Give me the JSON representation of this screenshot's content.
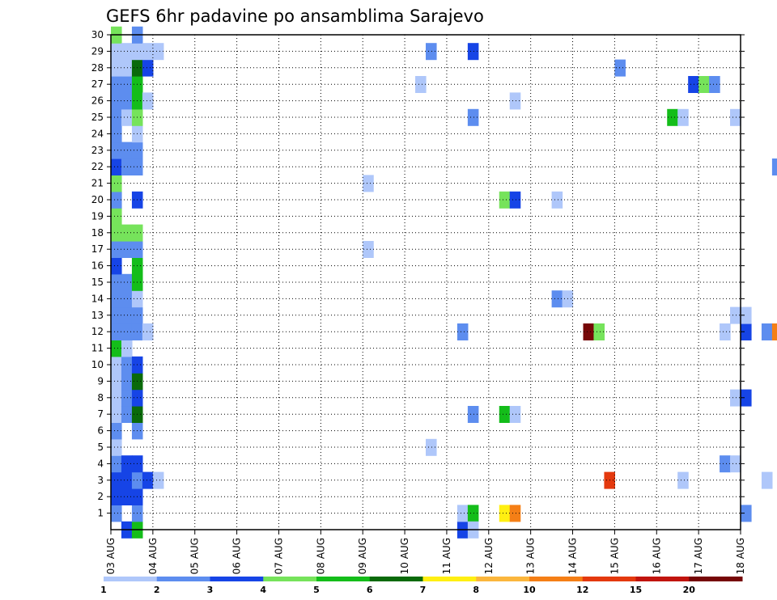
{
  "chart_data": {
    "type": "heatmap",
    "title": "GEFS 6hr padavine po ansamblima Sarajevo",
    "xlabel": "",
    "ylabel": "",
    "x_tick_labels": [
      "03 AUG",
      "04 AUG",
      "05 AUG",
      "06 AUG",
      "07 AUG",
      "08 AUG",
      "09 AUG",
      "10 AUG",
      "11 AUG",
      "12 AUG",
      "13 AUG",
      "14 AUG",
      "15 AUG",
      "16 AUG",
      "17 AUG",
      "18 AUG"
    ],
    "y_tick_labels": [
      "1",
      "2",
      "3",
      "4",
      "5",
      "6",
      "7",
      "8",
      "9",
      "10",
      "11",
      "12",
      "13",
      "14",
      "15",
      "16",
      "17",
      "18",
      "19",
      "20",
      "21",
      "22",
      "23",
      "24",
      "25",
      "26",
      "27",
      "28",
      "29",
      "30"
    ],
    "xlim_days": [
      0,
      15
    ],
    "ylim_members": [
      0,
      30
    ],
    "grid": true,
    "legend_placement": "bottom",
    "colorbar": {
      "labels": [
        "1",
        "2",
        "3",
        "4",
        "5",
        "6",
        "7",
        "8",
        "10",
        "12",
        "15",
        "20"
      ],
      "colors": [
        "#afc7fa",
        "#5d8def",
        "#1644e6",
        "#76e35b",
        "#14bd1a",
        "#0a6a0a",
        "#ffef12",
        "#fbb63d",
        "#f57f16",
        "#e4390e",
        "#c1140e",
        "#760707"
      ]
    },
    "cells": [
      [
        0,
        1,
        1
      ],
      [
        0,
        2,
        2
      ],
      [
        0,
        3,
        2
      ],
      [
        0,
        4,
        1
      ],
      [
        0,
        5,
        0
      ],
      [
        0,
        6,
        1
      ],
      [
        0,
        7,
        0
      ],
      [
        0,
        8,
        0
      ],
      [
        0,
        9,
        0
      ],
      [
        0,
        10,
        0
      ],
      [
        0,
        11,
        4
      ],
      [
        0,
        12,
        1
      ],
      [
        0,
        13,
        1
      ],
      [
        0,
        14,
        1
      ],
      [
        0,
        15,
        1
      ],
      [
        0,
        16,
        2
      ],
      [
        0,
        17,
        1
      ],
      [
        0,
        18,
        3
      ],
      [
        0,
        19,
        3
      ],
      [
        0,
        20,
        1
      ],
      [
        0,
        21,
        3
      ],
      [
        0,
        22,
        2
      ],
      [
        0,
        23,
        1
      ],
      [
        0,
        24,
        1
      ],
      [
        0,
        25,
        1
      ],
      [
        0,
        26,
        1
      ],
      [
        0,
        27,
        1
      ],
      [
        0,
        28,
        0
      ],
      [
        0,
        29,
        0
      ],
      [
        0,
        30,
        3
      ],
      [
        1,
        0,
        2
      ],
      [
        1,
        2,
        2
      ],
      [
        1,
        3,
        2
      ],
      [
        1,
        4,
        2
      ],
      [
        1,
        7,
        1
      ],
      [
        1,
        8,
        1
      ],
      [
        1,
        9,
        1
      ],
      [
        1,
        10,
        1
      ],
      [
        1,
        11,
        0
      ],
      [
        1,
        12,
        1
      ],
      [
        1,
        13,
        1
      ],
      [
        1,
        14,
        1
      ],
      [
        1,
        15,
        1
      ],
      [
        1,
        17,
        1
      ],
      [
        1,
        18,
        3
      ],
      [
        1,
        22,
        1
      ],
      [
        1,
        23,
        1
      ],
      [
        1,
        25,
        0
      ],
      [
        1,
        26,
        1
      ],
      [
        1,
        27,
        1
      ],
      [
        1,
        28,
        0
      ],
      [
        1,
        29,
        0
      ],
      [
        2,
        0,
        4
      ],
      [
        2,
        1,
        1
      ],
      [
        2,
        2,
        2
      ],
      [
        2,
        3,
        1
      ],
      [
        2,
        4,
        2
      ],
      [
        2,
        6,
        1
      ],
      [
        2,
        7,
        5
      ],
      [
        2,
        8,
        2
      ],
      [
        2,
        9,
        5
      ],
      [
        2,
        10,
        2
      ],
      [
        2,
        12,
        1
      ],
      [
        2,
        13,
        1
      ],
      [
        2,
        14,
        0
      ],
      [
        2,
        15,
        4
      ],
      [
        2,
        16,
        4
      ],
      [
        2,
        17,
        1
      ],
      [
        2,
        18,
        3
      ],
      [
        2,
        20,
        2
      ],
      [
        2,
        22,
        1
      ],
      [
        2,
        23,
        1
      ],
      [
        2,
        24,
        0
      ],
      [
        2,
        25,
        3
      ],
      [
        2,
        26,
        4
      ],
      [
        2,
        27,
        4
      ],
      [
        2,
        28,
        5
      ],
      [
        2,
        29,
        0
      ],
      [
        2,
        30,
        1
      ],
      [
        3,
        3,
        2
      ],
      [
        3,
        12,
        0
      ],
      [
        3,
        26,
        0
      ],
      [
        3,
        28,
        2
      ],
      [
        3,
        29,
        0
      ],
      [
        4,
        3,
        0
      ],
      [
        4,
        29,
        0
      ],
      [
        24,
        17,
        0
      ],
      [
        24,
        21,
        0
      ],
      [
        29,
        27,
        0
      ],
      [
        30,
        5,
        0
      ],
      [
        30,
        29,
        1
      ],
      [
        33,
        0,
        2
      ],
      [
        33,
        1,
        0
      ],
      [
        33,
        12,
        1
      ],
      [
        34,
        1,
        4
      ],
      [
        34,
        0,
        0
      ],
      [
        34,
        7,
        1
      ],
      [
        34,
        25,
        1
      ],
      [
        34,
        29,
        2
      ],
      [
        37,
        1,
        6
      ],
      [
        37,
        7,
        4
      ],
      [
        37,
        20,
        3
      ],
      [
        38,
        1,
        8
      ],
      [
        38,
        7,
        0
      ],
      [
        38,
        20,
        2
      ],
      [
        38,
        26,
        0
      ],
      [
        42,
        14,
        1
      ],
      [
        42,
        20,
        0
      ],
      [
        43,
        14,
        0
      ],
      [
        45,
        12,
        11
      ],
      [
        46,
        12,
        3
      ],
      [
        47,
        3,
        9
      ],
      [
        48,
        28,
        1
      ],
      [
        53,
        25,
        4
      ],
      [
        54,
        3,
        0
      ],
      [
        54,
        25,
        0
      ],
      [
        55,
        27,
        2
      ],
      [
        56,
        27,
        3
      ],
      [
        57,
        27,
        1
      ],
      [
        58,
        4,
        1
      ],
      [
        58,
        12,
        0
      ],
      [
        59,
        4,
        0
      ],
      [
        59,
        8,
        0
      ],
      [
        59,
        13,
        0
      ],
      [
        59,
        25,
        0
      ],
      [
        60,
        1,
        1
      ],
      [
        60,
        8,
        2
      ],
      [
        60,
        12,
        2
      ],
      [
        60,
        13,
        0
      ],
      [
        62,
        3,
        0
      ],
      [
        62,
        12,
        1
      ],
      [
        63,
        12,
        8
      ],
      [
        63,
        22,
        1
      ],
      [
        64,
        12,
        0
      ],
      [
        64,
        22,
        0
      ],
      [
        65,
        1,
        0
      ],
      [
        65,
        9,
        0
      ],
      [
        65,
        22,
        0
      ],
      [
        65,
        23,
        0
      ],
      [
        66,
        9,
        0
      ],
      [
        66,
        22,
        0
      ],
      [
        67,
        12,
        1
      ],
      [
        67,
        22,
        7
      ],
      [
        67,
        23,
        1
      ],
      [
        68,
        5,
        2
      ],
      [
        68,
        10,
        7
      ],
      [
        68,
        12,
        1
      ],
      [
        68,
        22,
        4
      ],
      [
        68,
        23,
        0
      ],
      [
        69,
        10,
        7
      ],
      [
        69,
        12,
        1
      ],
      [
        70,
        2,
        0
      ],
      [
        70,
        8,
        0
      ],
      [
        70,
        19,
        4
      ],
      [
        70,
        20,
        0
      ],
      [
        71,
        19,
        1
      ],
      [
        72,
        7,
        0
      ],
      [
        72,
        18,
        5
      ],
      [
        72,
        20,
        2
      ],
      [
        73,
        9,
        2
      ],
      [
        74,
        2,
        1
      ],
      [
        74,
        5,
        0
      ],
      [
        74,
        7,
        8
      ],
      [
        74,
        18,
        1
      ],
      [
        74,
        20,
        0
      ]
    ]
  }
}
